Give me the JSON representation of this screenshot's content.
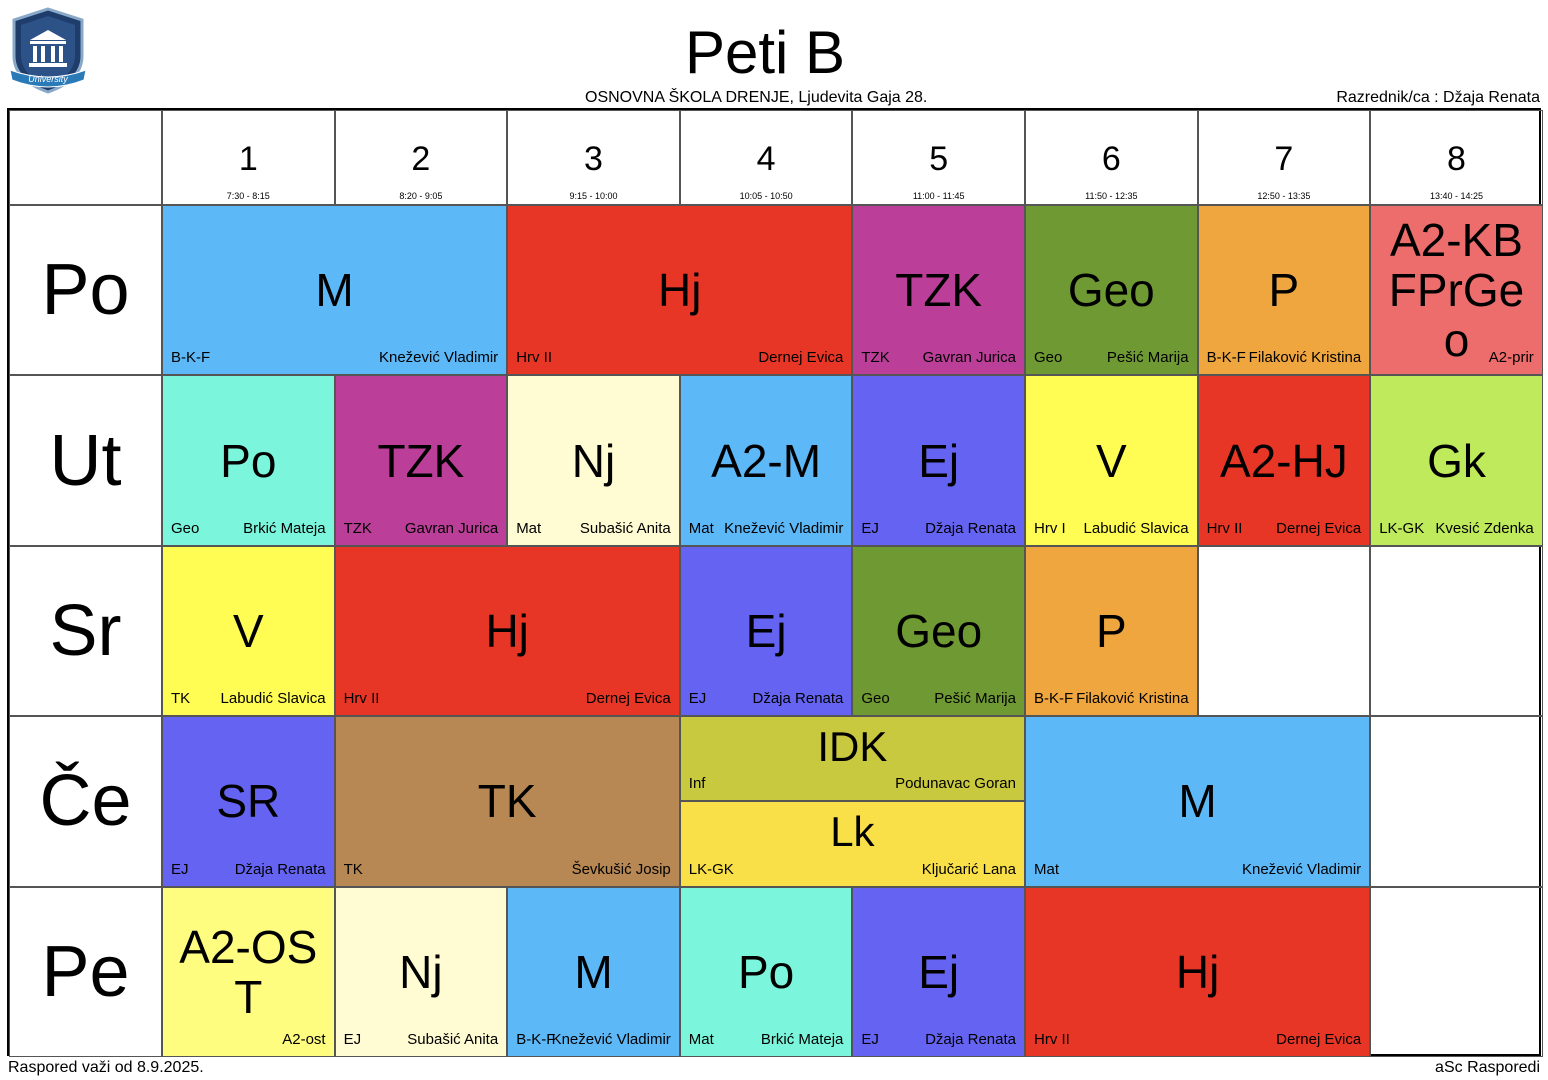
{
  "header": {
    "title": "Peti B",
    "school": "OSNOVNA ŠKOLA  DRENJE, Ljudevita Gaja 28.",
    "class_teacher": "Razrednik/ca : Džaja Renata",
    "logo_text": "University"
  },
  "periods": [
    {
      "num": "1",
      "time": "7:30 - 8:15"
    },
    {
      "num": "2",
      "time": "8:20 - 9:05"
    },
    {
      "num": "3",
      "time": "9:15 - 10:00"
    },
    {
      "num": "4",
      "time": "10:05 - 10:50"
    },
    {
      "num": "5",
      "time": "11:00 - 11:45"
    },
    {
      "num": "6",
      "time": "11:50 - 12:35"
    },
    {
      "num": "7",
      "time": "12:50 - 13:35"
    },
    {
      "num": "8",
      "time": "13:40 - 14:25"
    }
  ],
  "days": [
    "Po",
    "Ut",
    "Sr",
    "Če",
    "Pe"
  ],
  "lessons": [
    {
      "day": 0,
      "start": 1,
      "span": 2,
      "subject": "M",
      "room": "B-K-F",
      "teacher": "Knežević Vladimir",
      "color": "#5DB8F8"
    },
    {
      "day": 0,
      "start": 3,
      "span": 2,
      "subject": "Hj",
      "room": "Hrv II",
      "teacher": "Dernej Evica",
      "color": "#E83626"
    },
    {
      "day": 0,
      "start": 5,
      "span": 1,
      "subject": "TZK",
      "room": "TZK",
      "teacher": "Gavran Jurica",
      "color": "#BB3F99"
    },
    {
      "day": 0,
      "start": 6,
      "span": 1,
      "subject": "Geo",
      "room": "Geo",
      "teacher": "Pešić Marija",
      "color": "#6F9A33"
    },
    {
      "day": 0,
      "start": 7,
      "span": 1,
      "subject": "P",
      "room": "B-K-F",
      "teacher": "Filaković Kristina",
      "color": "#F0A63F"
    },
    {
      "day": 0,
      "start": 8,
      "span": 1,
      "subject": "A2-KBFPrGeo",
      "room": "",
      "teacher": "A2-prir",
      "color": "#EC6D6B"
    },
    {
      "day": 1,
      "start": 1,
      "span": 1,
      "subject": "Po",
      "room": "Geo",
      "teacher": "Brkić Mateja",
      "color": "#7BF5DC"
    },
    {
      "day": 1,
      "start": 2,
      "span": 1,
      "subject": "TZK",
      "room": "TZK",
      "teacher": "Gavran Jurica",
      "color": "#BB3F99"
    },
    {
      "day": 1,
      "start": 3,
      "span": 1,
      "subject": "Nj",
      "room": "Mat",
      "teacher": "Subašić Anita",
      "color": "#FFFBD2"
    },
    {
      "day": 1,
      "start": 4,
      "span": 1,
      "subject": "A2-M",
      "room": "Mat",
      "teacher": "Knežević Vladimir",
      "color": "#5DB8F8"
    },
    {
      "day": 1,
      "start": 5,
      "span": 1,
      "subject": "Ej",
      "room": "EJ",
      "teacher": "Džaja Renata",
      "color": "#6564F2"
    },
    {
      "day": 1,
      "start": 6,
      "span": 1,
      "subject": "V",
      "room": "Hrv I",
      "teacher": "Labudić Slavica",
      "color": "#FFFD54"
    },
    {
      "day": 1,
      "start": 7,
      "span": 1,
      "subject": "A2-HJ",
      "room": "Hrv II",
      "teacher": "Dernej Evica",
      "color": "#E83626"
    },
    {
      "day": 1,
      "start": 8,
      "span": 1,
      "subject": "Gk",
      "room": "LK-GK",
      "teacher": "Kvesić Zdenka",
      "color": "#BEEA5C"
    },
    {
      "day": 2,
      "start": 1,
      "span": 1,
      "subject": "V",
      "room": "TK",
      "teacher": "Labudić Slavica",
      "color": "#FFFD54"
    },
    {
      "day": 2,
      "start": 2,
      "span": 2,
      "subject": "Hj",
      "room": "Hrv II",
      "teacher": "Dernej Evica",
      "color": "#E83626"
    },
    {
      "day": 2,
      "start": 4,
      "span": 1,
      "subject": "Ej",
      "room": "EJ",
      "teacher": "Džaja Renata",
      "color": "#6564F2"
    },
    {
      "day": 2,
      "start": 5,
      "span": 1,
      "subject": "Geo",
      "room": "Geo",
      "teacher": "Pešić Marija",
      "color": "#6F9A33"
    },
    {
      "day": 2,
      "start": 6,
      "span": 1,
      "subject": "P",
      "room": "B-K-F",
      "teacher": "Filaković Kristina",
      "color": "#F0A63F"
    },
    {
      "day": 3,
      "start": 1,
      "span": 1,
      "subject": "SR",
      "room": "EJ",
      "teacher": "Džaja Renata",
      "color": "#6564F2"
    },
    {
      "day": 3,
      "start": 2,
      "span": 2,
      "subject": "TK",
      "room": "TK",
      "teacher": "Ševkušić Josip",
      "color": "#B78853"
    },
    {
      "day": 3,
      "start": 4,
      "span": 2,
      "half": "top",
      "subject": "IDK",
      "room": "Inf",
      "teacher": "Podunavac Goran",
      "color": "#C9C93F"
    },
    {
      "day": 3,
      "start": 4,
      "span": 2,
      "half": "bottom",
      "subject": "Lk",
      "room": "LK-GK",
      "teacher": "Ključarić Lana",
      "color": "#F9E049"
    },
    {
      "day": 3,
      "start": 6,
      "span": 2,
      "subject": "M",
      "room": "Mat",
      "teacher": "Knežević Vladimir",
      "color": "#5DB8F8"
    },
    {
      "day": 4,
      "start": 1,
      "span": 1,
      "subject": "A2-OST",
      "room": "",
      "teacher": "A2-ost",
      "color": "#FFFD80"
    },
    {
      "day": 4,
      "start": 2,
      "span": 1,
      "subject": "Nj",
      "room": "EJ",
      "teacher": "Subašić Anita",
      "color": "#FFFBD2"
    },
    {
      "day": 4,
      "start": 3,
      "span": 1,
      "subject": "M",
      "room": "B-K-F",
      "teacher": "Knežević Vladimir",
      "color": "#5DB8F8"
    },
    {
      "day": 4,
      "start": 4,
      "span": 1,
      "subject": "Po",
      "room": "Mat",
      "teacher": "Brkić Mateja",
      "color": "#7BF5DC"
    },
    {
      "day": 4,
      "start": 5,
      "span": 1,
      "subject": "Ej",
      "room": "EJ",
      "teacher": "Džaja Renata",
      "color": "#6564F2"
    },
    {
      "day": 4,
      "start": 6,
      "span": 2,
      "subject": "Hj",
      "room": "Hrv II",
      "teacher": "Dernej Evica",
      "color": "#E83626"
    }
  ],
  "footer": {
    "valid_from": "Raspored važi od 8.9.2025.",
    "software": "aSc Rasporedi"
  }
}
